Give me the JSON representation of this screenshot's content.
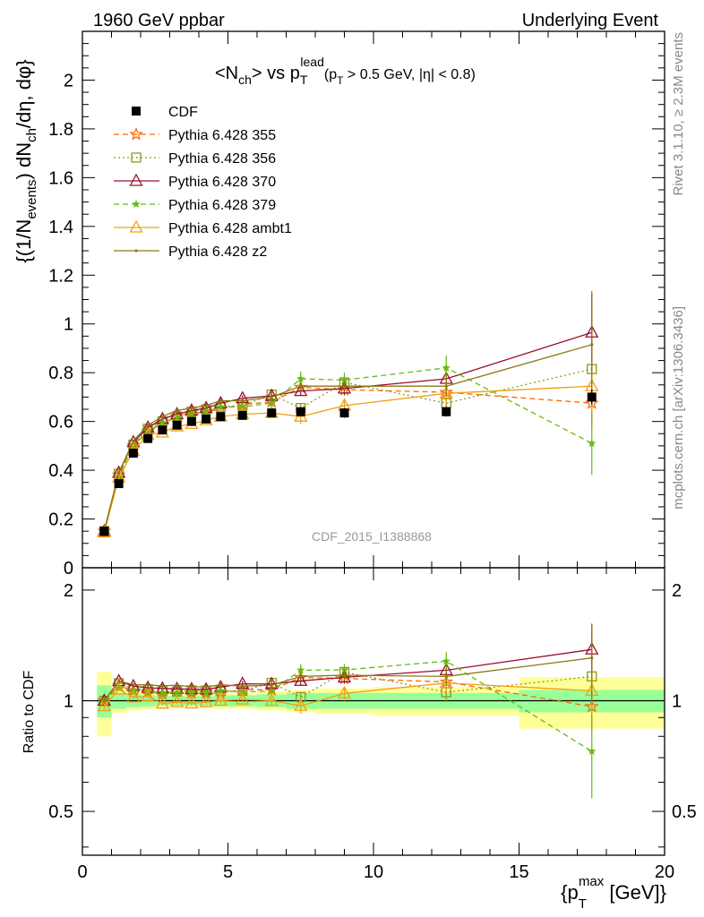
{
  "header": {
    "left": "1960 GeV ppbar",
    "right": "Underlying Event"
  },
  "side": {
    "rivet": "Rivet 3.1.10, ≥ 2.3M events",
    "mcplots": "mcplots.cern.ch [arXiv:1306.3436]"
  },
  "chart_data": {
    "type": "line",
    "title": "<N_ch> vs p_T^lead (p_T > 0.5 GeV, |η| < 0.8)",
    "watermark": "CDF_2015_I1388868",
    "xlabel": "{p_T^max [GeV]}",
    "ylabel": "{(1/N_events) dN_ch/dη, dφ}",
    "ratio_ylabel": "Ratio to CDF",
    "xlim": [
      0,
      20
    ],
    "ylim": [
      0,
      2.2
    ],
    "ratio_ylim": [
      0.38,
      2.3
    ],
    "ratio_scale": "log",
    "xticks": [
      0,
      5,
      10,
      15,
      20
    ],
    "yticks": [
      0,
      0.2,
      0.4,
      0.6,
      0.8,
      1,
      1.2,
      1.4,
      1.6,
      1.8,
      2
    ],
    "ratio_yticks": [
      0.5,
      1,
      2
    ],
    "legend_position": "top-left",
    "x": [
      0.75,
      1.25,
      1.75,
      2.25,
      2.75,
      3.25,
      3.75,
      4.25,
      4.75,
      5.5,
      6.5,
      7.5,
      9.0,
      12.5,
      17.5
    ],
    "bins": [
      [
        0.5,
        1.0
      ],
      [
        1.0,
        1.5
      ],
      [
        1.5,
        2.0
      ],
      [
        2.0,
        2.5
      ],
      [
        2.5,
        3.0
      ],
      [
        3.0,
        3.5
      ],
      [
        3.5,
        4.0
      ],
      [
        4.0,
        4.5
      ],
      [
        4.5,
        5.0
      ],
      [
        5.0,
        6.0
      ],
      [
        6.0,
        7.0
      ],
      [
        7.0,
        8.0
      ],
      [
        8.0,
        10.0
      ],
      [
        10.0,
        15.0
      ],
      [
        15.0,
        20.0
      ]
    ],
    "data": {
      "name": "CDF",
      "values": [
        0.15,
        0.345,
        0.47,
        0.53,
        0.565,
        0.585,
        0.6,
        0.61,
        0.62,
        0.625,
        0.635,
        0.64,
        0.635,
        0.64,
        0.7
      ],
      "errors": [
        0.005,
        0.006,
        0.006,
        0.006,
        0.006,
        0.006,
        0.006,
        0.007,
        0.007,
        0.008,
        0.01,
        0.015,
        0.02,
        0.02,
        0.03
      ]
    },
    "data_band": {
      "stat_half": [
        0.1,
        0.05,
        0.04,
        0.035,
        0.03,
        0.03,
        0.03,
        0.03,
        0.035,
        0.035,
        0.04,
        0.05,
        0.05,
        0.05,
        0.07
      ],
      "total_half": [
        0.2,
        0.075,
        0.06,
        0.05,
        0.045,
        0.045,
        0.045,
        0.045,
        0.05,
        0.05,
        0.06,
        0.07,
        0.08,
        0.09,
        0.16
      ]
    },
    "series": [
      {
        "name": "Pythia 6.428 355",
        "color": "#ff6600",
        "dash": "6,4",
        "marker": "star-open",
        "values": [
          0.15,
          0.38,
          0.5,
          0.56,
          0.59,
          0.62,
          0.63,
          0.64,
          0.65,
          0.67,
          0.68,
          0.74,
          0.73,
          0.72,
          0.675
        ],
        "errors": [
          0.003,
          0.004,
          0.005,
          0.006,
          0.007,
          0.008,
          0.009,
          0.01,
          0.01,
          0.012,
          0.015,
          0.02,
          0.025,
          0.04,
          0.1
        ]
      },
      {
        "name": "Pythia 6.428 356",
        "color": "#8c9a1a",
        "dash": "2,3",
        "marker": "square-open",
        "values": [
          0.15,
          0.385,
          0.505,
          0.57,
          0.6,
          0.62,
          0.64,
          0.65,
          0.66,
          0.665,
          0.71,
          0.655,
          0.76,
          0.675,
          0.815
        ],
        "errors": [
          0.003,
          0.004,
          0.005,
          0.006,
          0.007,
          0.008,
          0.009,
          0.01,
          0.01,
          0.012,
          0.015,
          0.02,
          0.025,
          0.04,
          0.16
        ]
      },
      {
        "name": "Pythia 6.428 370",
        "color": "#99102a",
        "dash": "",
        "marker": "triangle-open",
        "values": [
          0.15,
          0.39,
          0.515,
          0.575,
          0.61,
          0.63,
          0.645,
          0.655,
          0.675,
          0.695,
          0.705,
          0.725,
          0.735,
          0.775,
          0.965
        ],
        "errors": [
          0.003,
          0.004,
          0.005,
          0.006,
          0.007,
          0.008,
          0.009,
          0.01,
          0.01,
          0.012,
          0.015,
          0.02,
          0.025,
          0.04,
          0.16
        ]
      },
      {
        "name": "Pythia 6.428 379",
        "color": "#66bb11",
        "dash": "6,4",
        "marker": "star",
        "values": [
          0.15,
          0.375,
          0.5,
          0.56,
          0.595,
          0.615,
          0.63,
          0.64,
          0.66,
          0.66,
          0.675,
          0.775,
          0.77,
          0.82,
          0.51
        ],
        "errors": [
          0.003,
          0.004,
          0.005,
          0.006,
          0.007,
          0.008,
          0.009,
          0.01,
          0.01,
          0.012,
          0.015,
          0.03,
          0.03,
          0.05,
          0.13
        ]
      },
      {
        "name": "Pythia 6.428 ambt1",
        "color": "#f0a010",
        "dash": "",
        "marker": "triangle-open",
        "values": [
          0.145,
          0.37,
          0.48,
          0.545,
          0.555,
          0.58,
          0.59,
          0.605,
          0.62,
          0.63,
          0.635,
          0.62,
          0.665,
          0.715,
          0.745
        ],
        "errors": [
          0.003,
          0.004,
          0.005,
          0.006,
          0.007,
          0.008,
          0.009,
          0.01,
          0.01,
          0.012,
          0.015,
          0.03,
          0.03,
          0.04,
          0.1
        ]
      },
      {
        "name": "Pythia 6.428 z2",
        "color": "#8a7a10",
        "dash": "",
        "marker": "dot",
        "values": [
          0.15,
          0.39,
          0.52,
          0.585,
          0.62,
          0.645,
          0.655,
          0.665,
          0.685,
          0.685,
          0.7,
          0.745,
          0.745,
          0.745,
          0.915
        ],
        "errors": [
          0.003,
          0.004,
          0.005,
          0.006,
          0.007,
          0.008,
          0.009,
          0.01,
          0.01,
          0.012,
          0.015,
          0.02,
          0.025,
          0.04,
          0.22
        ]
      }
    ]
  }
}
